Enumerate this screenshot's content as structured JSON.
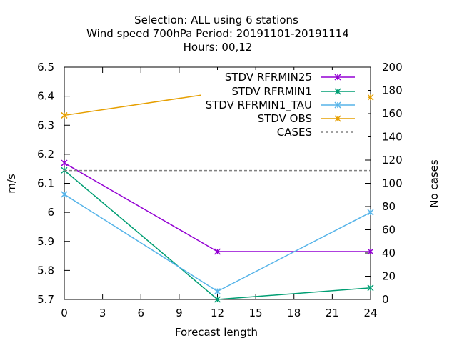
{
  "title_lines": [
    "Selection: ALL using     6 stations",
    "Wind speed 700hPa   Period: 20191101-20191114",
    "Hours:  00,12"
  ],
  "chart_data": {
    "type": "line",
    "xlabel": "Forecast length",
    "ylabel": "m/s",
    "y2label": "No cases",
    "xlim": [
      0,
      24
    ],
    "ylim": [
      5.7,
      6.5
    ],
    "y2lim": [
      0,
      200
    ],
    "x_ticks": [
      0,
      3,
      6,
      9,
      12,
      15,
      18,
      21,
      24
    ],
    "y_ticks": [
      5.7,
      5.8,
      5.9,
      6,
      6.1,
      6.2,
      6.3,
      6.4,
      6.5
    ],
    "y2_ticks": [
      0,
      20,
      40,
      60,
      80,
      100,
      120,
      140,
      160,
      180,
      200
    ],
    "grid": false,
    "legend_position": "top-right",
    "series": [
      {
        "name": "STDV RFRMIN25",
        "axis": "y",
        "color": "#9400d3",
        "marker": "x",
        "x": [
          0,
          12,
          24
        ],
        "y": [
          6.17,
          5.865,
          5.865
        ]
      },
      {
        "name": "STDV RFRMIN1",
        "axis": "y",
        "color": "#009e73",
        "marker": "x",
        "x": [
          0,
          12,
          24
        ],
        "y": [
          6.145,
          5.7,
          5.74
        ]
      },
      {
        "name": "STDV RFRMIN1_TAU",
        "axis": "y",
        "color": "#56b4e9",
        "marker": "x",
        "x": [
          0,
          12,
          24
        ],
        "y": [
          6.062,
          5.728,
          6.0
        ]
      },
      {
        "name": "STDV OBS",
        "axis": "y",
        "color": "#e69f00",
        "marker": "x",
        "x": [
          0,
          12,
          24
        ],
        "y": [
          6.334,
          6.412,
          6.396
        ]
      },
      {
        "name": "CASES",
        "axis": "y2",
        "color": "#808080",
        "dashed": true,
        "x": [
          0,
          24
        ],
        "y": [
          111,
          111
        ]
      }
    ]
  }
}
